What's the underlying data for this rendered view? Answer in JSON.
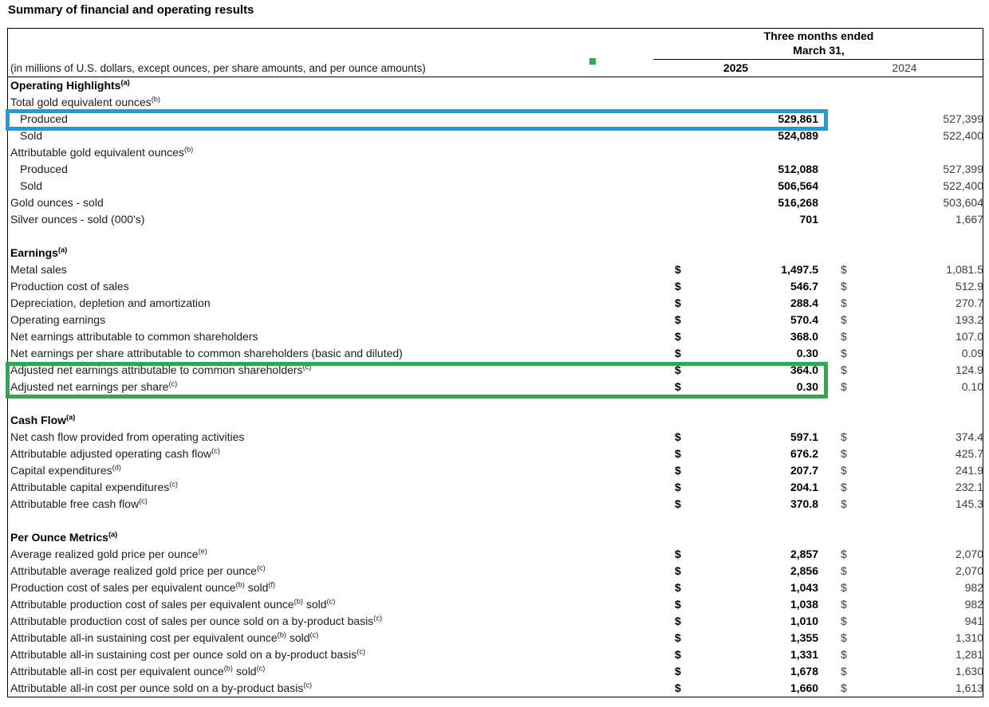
{
  "page_title": "Summary of financial and operating results",
  "table": {
    "period_header_line1": "Three months ended",
    "period_header_line2": "March 31,",
    "unit_note": "(in millions of U.S. dollars, except ounces, per share amounts, and per ounce amounts)",
    "columns": [
      "2025",
      "2024"
    ],
    "currency_symbol": "$",
    "sections": [
      {
        "title": "Operating Highlights^(a)^",
        "rows": [
          {
            "label": "Total gold equivalent ounces^(b)^",
            "indent": false,
            "currency": false,
            "v2025": "",
            "v2024": ""
          },
          {
            "label": "Produced",
            "indent": true,
            "currency": false,
            "v2025": "529,861",
            "v2024": "527,399"
          },
          {
            "label": "Sold",
            "indent": true,
            "currency": false,
            "v2025": "524,089",
            "v2024": "522,400"
          },
          {
            "label": "Attributable gold equivalent ounces^(b)^",
            "indent": false,
            "currency": false,
            "v2025": "",
            "v2024": ""
          },
          {
            "label": "Produced",
            "indent": true,
            "currency": false,
            "v2025": "512,088",
            "v2024": "527,399"
          },
          {
            "label": "Sold",
            "indent": true,
            "currency": false,
            "v2025": "506,564",
            "v2024": "522,400"
          },
          {
            "label": "Gold ounces - sold",
            "indent": false,
            "currency": false,
            "v2025": "516,268",
            "v2024": "503,604"
          },
          {
            "label": "Silver ounces - sold (000's)",
            "indent": false,
            "currency": false,
            "v2025": "701",
            "v2024": "1,667"
          }
        ]
      },
      {
        "title": "Earnings^(a)^",
        "rows": [
          {
            "label": "Metal sales",
            "indent": false,
            "currency": true,
            "v2025": "1,497.5",
            "v2024": "1,081.5"
          },
          {
            "label": "Production cost of sales",
            "indent": false,
            "currency": true,
            "v2025": "546.7",
            "v2024": "512.9"
          },
          {
            "label": "Depreciation, depletion and amortization",
            "indent": false,
            "currency": true,
            "v2025": "288.4",
            "v2024": "270.7"
          },
          {
            "label": "Operating earnings",
            "indent": false,
            "currency": true,
            "v2025": "570.4",
            "v2024": "193.2"
          },
          {
            "label": "Net earnings attributable to common shareholders",
            "indent": false,
            "currency": true,
            "v2025": "368.0",
            "v2024": "107.0"
          },
          {
            "label": "Net earnings per share attributable to common shareholders (basic and diluted)",
            "indent": false,
            "currency": true,
            "v2025": "0.30",
            "v2024": "0.09"
          },
          {
            "label": "Adjusted net earnings attributable to common shareholders^(c)^",
            "indent": false,
            "currency": true,
            "v2025": "364.0",
            "v2024": "124.9"
          },
          {
            "label": "Adjusted net earnings per share^(c)^",
            "indent": false,
            "currency": true,
            "v2025": "0.30",
            "v2024": "0.10"
          }
        ]
      },
      {
        "title": "Cash Flow^(a)^",
        "rows": [
          {
            "label": "Net cash flow provided from operating activities",
            "indent": false,
            "currency": true,
            "v2025": "597.1",
            "v2024": "374.4"
          },
          {
            "label": "Attributable adjusted operating cash flow^(c)^",
            "indent": false,
            "currency": true,
            "v2025": "676.2",
            "v2024": "425.7"
          },
          {
            "label": "Capital expenditures^(d)^",
            "indent": false,
            "currency": true,
            "v2025": "207.7",
            "v2024": "241.9"
          },
          {
            "label": "Attributable capital expenditures^(c)^",
            "indent": false,
            "currency": true,
            "v2025": "204.1",
            "v2024": "232.1"
          },
          {
            "label": "Attributable free cash flow^(c)^",
            "indent": false,
            "currency": true,
            "v2025": "370.8",
            "v2024": "145.3"
          }
        ]
      },
      {
        "title": "Per Ounce Metrics^(a)^",
        "rows": [
          {
            "label": "Average realized gold price per ounce^(e)^",
            "indent": false,
            "currency": true,
            "v2025": "2,857",
            "v2024": "2,070"
          },
          {
            "label": "Attributable average realized gold price per ounce^(c)^",
            "indent": false,
            "currency": true,
            "v2025": "2,856",
            "v2024": "2,070"
          },
          {
            "label": "Production cost of sales per equivalent ounce^(b)^ sold^(f)^",
            "indent": false,
            "currency": true,
            "v2025": "1,043",
            "v2024": "982"
          },
          {
            "label": "Attributable production cost of sales per equivalent ounce^(b)^ sold^(c)^",
            "indent": false,
            "currency": true,
            "v2025": "1,038",
            "v2024": "982"
          },
          {
            "label": "Attributable production cost of sales per ounce sold on a by-product basis^(c)^",
            "indent": false,
            "currency": true,
            "v2025": "1,010",
            "v2024": "941"
          },
          {
            "label": "Attributable all-in sustaining cost per equivalent ounce^(b)^ sold^(c)^",
            "indent": false,
            "currency": true,
            "v2025": "1,355",
            "v2024": "1,310"
          },
          {
            "label": "Attributable all-in sustaining cost per ounce sold on a by-product basis^(c)^",
            "indent": false,
            "currency": true,
            "v2025": "1,331",
            "v2024": "1,281"
          },
          {
            "label": "Attributable all-in cost per equivalent ounce^(b)^ sold^(c)^",
            "indent": false,
            "currency": true,
            "v2025": "1,678",
            "v2024": "1,630"
          },
          {
            "label": "Attributable all-in cost per ounce sold on a by-product basis^(c)^",
            "indent": false,
            "currency": true,
            "v2025": "1,660",
            "v2024": "1,613"
          }
        ]
      }
    ]
  },
  "annotations": {
    "blue_box_color": "#1b9dd9",
    "green_box_color": "#2fa84f",
    "green_marker_color": "#2fa84f"
  }
}
